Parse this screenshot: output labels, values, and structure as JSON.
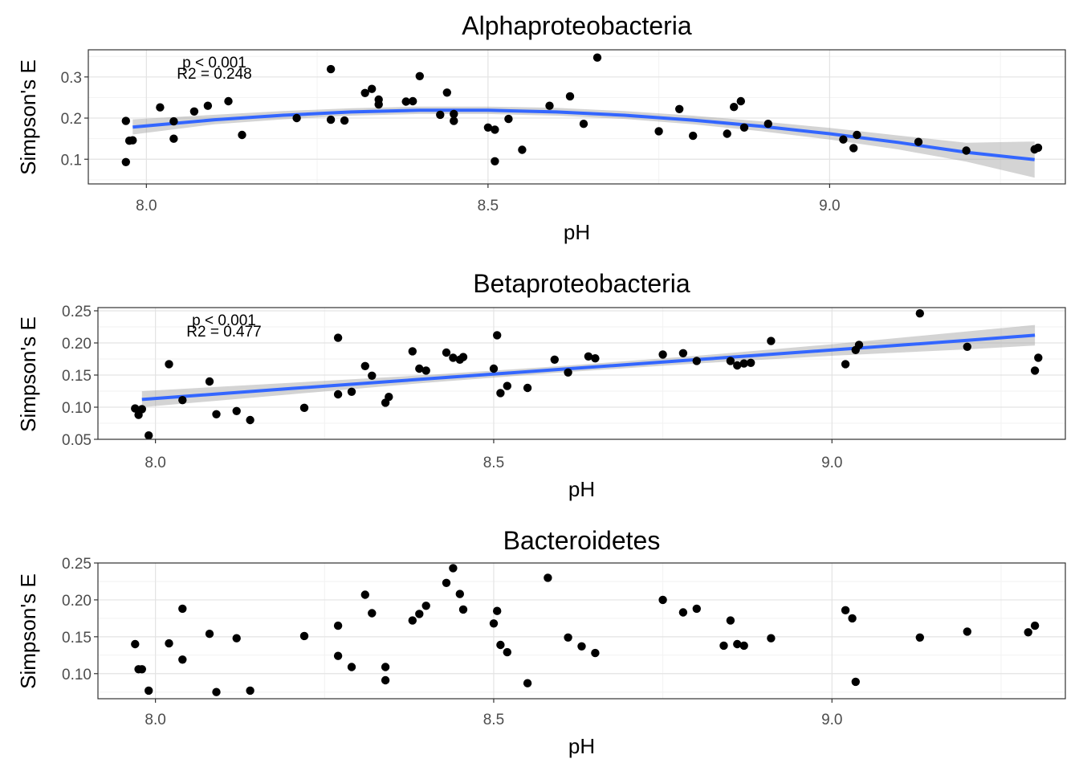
{
  "chart_data": [
    {
      "type": "scatter",
      "title": "Alphaproteobacteria",
      "xlabel": "pH",
      "ylabel": "Simpson's E",
      "xlim": [
        7.915,
        9.345
      ],
      "ylim": [
        0.04,
        0.366
      ],
      "xticks": [
        "8.0",
        "8.5",
        "9.0"
      ],
      "yticks": [
        "0.1",
        "0.2",
        "0.3"
      ],
      "grid": true,
      "annotations": [
        "p < 0.001",
        "R2 = 0.248"
      ],
      "fit": {
        "type": "quadratic",
        "x": [
          7.98,
          8.1,
          8.2,
          8.3,
          8.4,
          8.5,
          8.6,
          8.7,
          8.8,
          8.9,
          9.0,
          9.1,
          9.2,
          9.3
        ],
        "y": [
          0.178,
          0.196,
          0.207,
          0.215,
          0.219,
          0.219,
          0.215,
          0.207,
          0.195,
          0.18,
          0.162,
          0.141,
          0.117,
          0.099
        ],
        "ci_lower": [
          0.16,
          0.185,
          0.197,
          0.206,
          0.21,
          0.21,
          0.206,
          0.198,
          0.185,
          0.168,
          0.148,
          0.124,
          0.094,
          0.055
        ],
        "ci_upper": [
          0.197,
          0.208,
          0.217,
          0.224,
          0.228,
          0.228,
          0.225,
          0.217,
          0.206,
          0.192,
          0.176,
          0.158,
          0.14,
          0.143
        ]
      },
      "x": [
        7.97,
        7.97,
        7.975,
        7.98,
        8.02,
        8.04,
        8.04,
        8.07,
        8.09,
        8.12,
        8.14,
        8.22,
        8.27,
        8.27,
        8.29,
        8.32,
        8.33,
        8.34,
        8.34,
        8.38,
        8.39,
        8.4,
        8.43,
        8.44,
        8.45,
        8.45,
        8.5,
        8.51,
        8.51,
        8.53,
        8.55,
        8.59,
        8.62,
        8.64,
        8.66,
        8.75,
        8.78,
        8.8,
        8.85,
        8.86,
        8.87,
        8.875,
        8.91,
        9.02,
        9.035,
        9.04,
        9.13,
        9.2,
        9.3,
        9.305
      ],
      "y": [
        0.193,
        0.093,
        0.145,
        0.146,
        0.226,
        0.192,
        0.15,
        0.216,
        0.23,
        0.241,
        0.159,
        0.2,
        0.319,
        0.196,
        0.194,
        0.261,
        0.271,
        0.245,
        0.233,
        0.24,
        0.241,
        0.302,
        0.208,
        0.262,
        0.21,
        0.193,
        0.177,
        0.172,
        0.095,
        0.198,
        0.123,
        0.23,
        0.253,
        0.186,
        0.347,
        0.168,
        0.222,
        0.157,
        0.162,
        0.227,
        0.241,
        0.177,
        0.186,
        0.148,
        0.127,
        0.159,
        0.142,
        0.121,
        0.124,
        0.128
      ]
    },
    {
      "type": "scatter",
      "title": "Betaproteobacteria",
      "xlabel": "pH",
      "ylabel": "Simpson's E",
      "xlim": [
        7.915,
        9.345
      ],
      "ylim": [
        0.05,
        0.255
      ],
      "xticks": [
        "8.0",
        "8.5",
        "9.0"
      ],
      "yticks": [
        "0.05",
        "0.10",
        "0.15",
        "0.20",
        "0.25"
      ],
      "grid": true,
      "annotations": [
        "p < 0.001",
        "R2 = 0.477"
      ],
      "fit": {
        "type": "linear",
        "x": [
          7.98,
          8.2,
          8.4,
          8.6,
          8.8,
          9.0,
          9.2,
          9.3
        ],
        "y": [
          0.112,
          0.129,
          0.144,
          0.159,
          0.174,
          0.189,
          0.204,
          0.212
        ],
        "ci_lower": [
          0.1,
          0.12,
          0.138,
          0.154,
          0.168,
          0.18,
          0.19,
          0.196
        ],
        "ci_upper": [
          0.125,
          0.138,
          0.15,
          0.164,
          0.18,
          0.198,
          0.218,
          0.228
        ]
      },
      "x": [
        7.97,
        7.975,
        7.98,
        7.99,
        8.02,
        8.04,
        8.08,
        8.09,
        8.12,
        8.14,
        8.22,
        8.27,
        8.27,
        8.29,
        8.31,
        8.32,
        8.34,
        8.345,
        8.38,
        8.39,
        8.4,
        8.43,
        8.44,
        8.45,
        8.455,
        8.5,
        8.505,
        8.51,
        8.52,
        8.55,
        8.59,
        8.61,
        8.64,
        8.65,
        8.75,
        8.78,
        8.8,
        8.85,
        8.86,
        8.87,
        8.88,
        8.91,
        9.02,
        9.035,
        9.04,
        9.13,
        9.2,
        9.3,
        9.305
      ],
      "y": [
        0.098,
        0.088,
        0.097,
        0.056,
        0.167,
        0.111,
        0.14,
        0.089,
        0.094,
        0.08,
        0.099,
        0.208,
        0.12,
        0.124,
        0.164,
        0.149,
        0.107,
        0.116,
        0.187,
        0.16,
        0.157,
        0.185,
        0.177,
        0.174,
        0.178,
        0.16,
        0.212,
        0.122,
        0.133,
        0.13,
        0.174,
        0.154,
        0.179,
        0.176,
        0.182,
        0.184,
        0.172,
        0.172,
        0.165,
        0.168,
        0.169,
        0.203,
        0.167,
        0.189,
        0.197,
        0.246,
        0.194,
        0.157,
        0.177
      ]
    },
    {
      "type": "scatter",
      "title": "Bacteroidetes",
      "xlabel": "pH",
      "ylabel": "Simpson's E",
      "xlim": [
        7.915,
        9.345
      ],
      "ylim": [
        0.066,
        0.25
      ],
      "xticks": [
        "8.0",
        "8.5",
        "9.0"
      ],
      "yticks": [
        "0.10",
        "0.15",
        "0.20",
        "0.25"
      ],
      "grid": true,
      "x": [
        7.97,
        7.975,
        7.98,
        7.99,
        8.02,
        8.04,
        8.04,
        8.08,
        8.09,
        8.12,
        8.14,
        8.22,
        8.27,
        8.27,
        8.29,
        8.31,
        8.32,
        8.34,
        8.34,
        8.38,
        8.39,
        8.4,
        8.43,
        8.44,
        8.45,
        8.455,
        8.5,
        8.505,
        8.51,
        8.52,
        8.55,
        8.58,
        8.61,
        8.63,
        8.65,
        8.75,
        8.78,
        8.8,
        8.84,
        8.85,
        8.86,
        8.87,
        8.91,
        9.02,
        9.03,
        9.035,
        9.13,
        9.2,
        9.29,
        9.3
      ],
      "y": [
        0.14,
        0.106,
        0.106,
        0.077,
        0.141,
        0.188,
        0.119,
        0.154,
        0.075,
        0.148,
        0.077,
        0.151,
        0.165,
        0.124,
        0.109,
        0.207,
        0.182,
        0.109,
        0.091,
        0.172,
        0.181,
        0.192,
        0.223,
        0.243,
        0.208,
        0.187,
        0.168,
        0.185,
        0.139,
        0.129,
        0.087,
        0.23,
        0.149,
        0.137,
        0.128,
        0.2,
        0.183,
        0.188,
        0.138,
        0.172,
        0.14,
        0.138,
        0.148,
        0.186,
        0.175,
        0.089,
        0.149,
        0.157,
        0.156,
        0.165
      ]
    }
  ]
}
